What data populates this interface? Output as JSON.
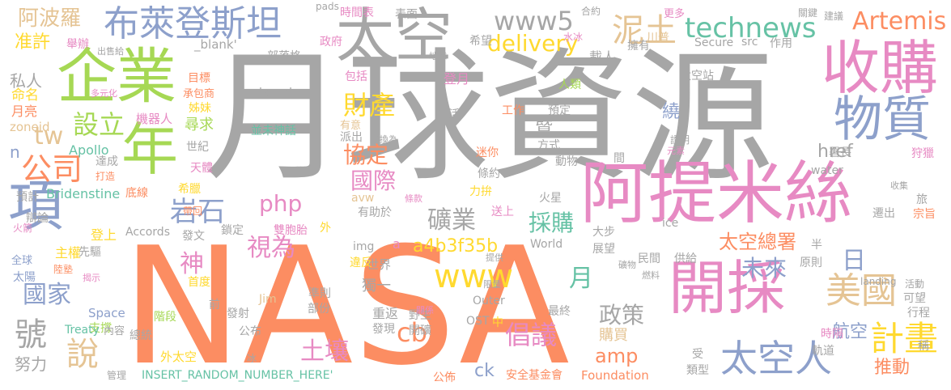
{
  "palette": {
    "gray": "#a6a6a6",
    "orange": "#fc8d62",
    "blue": "#8da0cb",
    "pink": "#e78ac3",
    "green": "#66c2a5",
    "lime": "#a6d854",
    "yellow": "#ffd92f",
    "tan": "#e5c494",
    "white": "#ffffff"
  },
  "words": [
    {
      "id": "w0",
      "text": "月球資源"
    },
    {
      "id": "w1",
      "text": "NASA"
    },
    {
      "id": "w2",
      "text": "阿提米絲"
    },
    {
      "id": "w3",
      "text": "開採"
    },
    {
      "id": "w4",
      "text": "企業"
    },
    {
      "id": "w5",
      "text": "收購"
    },
    {
      "id": "w6",
      "text": "太空"
    },
    {
      "id": "w7",
      "text": "年"
    },
    {
      "id": "w8",
      "text": "項"
    },
    {
      "id": "w9",
      "text": "布萊登斯坦"
    },
    {
      "id": "w10",
      "text": "物質"
    },
    {
      "id": "w11",
      "text": "technews"
    },
    {
      "id": "w12",
      "text": "太空人"
    },
    {
      "id": "w13",
      "text": "Artemis"
    },
    {
      "id": "w14",
      "text": "美國"
    },
    {
      "id": "w15",
      "text": "計畫"
    },
    {
      "id": "w16",
      "text": "泥土"
    },
    {
      "id": "w17",
      "text": "www5"
    },
    {
      "id": "w18",
      "text": "delivery"
    },
    {
      "id": "w19",
      "text": "公司"
    },
    {
      "id": "w20",
      "text": "財產"
    },
    {
      "id": "w21",
      "text": "設立"
    },
    {
      "id": "w22",
      "text": "岩石"
    },
    {
      "id": "w23",
      "text": "礦業"
    },
    {
      "id": "w24",
      "text": "國際"
    },
    {
      "id": "w25",
      "text": "協定"
    },
    {
      "id": "w26",
      "text": "採購"
    },
    {
      "id": "w27",
      "text": "視為"
    },
    {
      "id": "w28",
      "text": "土壤"
    },
    {
      "id": "w29",
      "text": "倡議"
    },
    {
      "id": "w30",
      "text": "政策"
    },
    {
      "id": "w31",
      "text": "說"
    },
    {
      "id": "w32",
      "text": "號"
    },
    {
      "id": "w33",
      "text": "國家"
    },
    {
      "id": "w34",
      "text": "未來"
    },
    {
      "id": "w35",
      "text": "太空總署"
    },
    {
      "id": "w36",
      "text": "www"
    },
    {
      "id": "w37",
      "text": "amp"
    },
    {
      "id": "w38",
      "text": "cb"
    },
    {
      "id": "w39",
      "text": "php"
    },
    {
      "id": "w40",
      "text": "a4b3f35b"
    },
    {
      "id": "w41",
      "text": "阿波羅"
    },
    {
      "id": "w42",
      "text": "准許"
    },
    {
      "id": "w43",
      "text": "tw"
    },
    {
      "id": "w44",
      "text": "神"
    },
    {
      "id": "w45",
      "text": "日"
    },
    {
      "id": "w46",
      "text": "月"
    },
    {
      "id": "w47",
      "text": "航空"
    },
    {
      "id": "w48",
      "text": "推動"
    },
    {
      "id": "w49",
      "text": "購買"
    },
    {
      "id": "w50",
      "text": "努力"
    },
    {
      "id": "w51",
      "text": "ck"
    },
    {
      "id": "w52",
      "text": "href"
    },
    {
      "id": "w53",
      "text": "Apollo"
    },
    {
      "id": "w54",
      "text": "Bridenstine"
    },
    {
      "id": "w55",
      "text": "私人"
    },
    {
      "id": "w56",
      "text": "命名"
    },
    {
      "id": "w57",
      "text": "月亮"
    },
    {
      "id": "w58",
      "text": "zoneid"
    },
    {
      "id": "w59",
      "text": "n"
    },
    {
      "id": "w60",
      "text": "並未神話"
    },
    {
      "id": "w61",
      "text": "target"
    },
    {
      "id": "w62",
      "text": "_blank'"
    },
    {
      "id": "w63",
      "text": "部落格"
    },
    {
      "id": "w64",
      "text": "目標"
    },
    {
      "id": "w65",
      "text": "姊妹"
    },
    {
      "id": "w66",
      "text": "機器人"
    },
    {
      "id": "w67",
      "text": "尋求"
    },
    {
      "id": "w68",
      "text": "世紀"
    },
    {
      "id": "w69",
      "text": "天體"
    },
    {
      "id": "w70",
      "text": "希臘"
    },
    {
      "id": "w71",
      "text": "底線"
    },
    {
      "id": "w72",
      "text": "達成"
    },
    {
      "id": "w73",
      "text": "預計"
    },
    {
      "id": "w74",
      "text": "辯論"
    },
    {
      "id": "w75",
      "text": "登上"
    },
    {
      "id": "w76",
      "text": "主權"
    },
    {
      "id": "w77",
      "text": "先驅"
    },
    {
      "id": "w78",
      "text": "太陽"
    },
    {
      "id": "w79",
      "text": "全球"
    },
    {
      "id": "w80",
      "text": "Accords"
    },
    {
      "id": "w81",
      "text": "首度"
    },
    {
      "id": "w82",
      "text": "階段"
    },
    {
      "id": "w83",
      "text": "總統"
    },
    {
      "id": "w84",
      "text": "外太空"
    },
    {
      "id": "w85",
      "text": "公布"
    },
    {
      "id": "w86",
      "text": "發射"
    },
    {
      "id": "w87",
      "text": "部份"
    },
    {
      "id": "w88",
      "text": "重返"
    },
    {
      "id": "w89",
      "text": "獨一"
    },
    {
      "id": "w90",
      "text": "Space"
    },
    {
      "id": "w91",
      "text": "支撐"
    },
    {
      "id": "w92",
      "text": "Treaty"
    },
    {
      "id": "w93",
      "text": "內容"
    },
    {
      "id": "w94",
      "text": "INSERT_RANDOM_NUMBER_HERE'"
    },
    {
      "id": "w95",
      "text": "安全基金會"
    },
    {
      "id": "w96",
      "text": "Foundation"
    },
    {
      "id": "w97",
      "text": "世界"
    },
    {
      "id": "w98",
      "text": "準則"
    },
    {
      "id": "w99",
      "text": "違反"
    },
    {
      "id": "w100",
      "text": "World"
    },
    {
      "id": "w101",
      "text": "OST"
    },
    {
      "id": "w102",
      "text": "Outer"
    },
    {
      "id": "w103",
      "text": "最終"
    },
    {
      "id": "w104",
      "text": "開礦"
    },
    {
      "id": "w105",
      "text": "野生"
    },
    {
      "id": "w106",
      "text": "時間表"
    },
    {
      "id": "w107",
      "text": "表面"
    },
    {
      "id": "w108",
      "text": "政府"
    },
    {
      "id": "w109",
      "text": "希望"
    },
    {
      "id": "w110",
      "text": "載人"
    },
    {
      "id": "w111",
      "text": "擁有"
    },
    {
      "id": "w112",
      "text": "川普"
    },
    {
      "id": "w113",
      "text": "Secure"
    },
    {
      "id": "w114",
      "text": "src"
    },
    {
      "id": "w115",
      "text": "作用"
    },
    {
      "id": "w116",
      "text": "太空站"
    },
    {
      "id": "w117",
      "text": "人類"
    },
    {
      "id": "w118",
      "text": "登月"
    },
    {
      "id": "w119",
      "text": "包括"
    },
    {
      "id": "w120",
      "text": "生活"
    },
    {
      "id": "w121",
      "text": "工作"
    },
    {
      "id": "w122",
      "text": "預定"
    },
    {
      "id": "w123",
      "text": "暨"
    },
    {
      "id": "w124",
      "text": "繞"
    },
    {
      "id": "w125",
      "text": "方式"
    },
    {
      "id": "w126",
      "text": "迷你"
    },
    {
      "id": "w127",
      "text": "動物"
    },
    {
      "id": "w128",
      "text": "條約"
    },
    {
      "id": "w129",
      "text": "力拚"
    },
    {
      "id": "w130",
      "text": "火星"
    },
    {
      "id": "w131",
      "text": "送上"
    },
    {
      "id": "w132",
      "text": "有助於"
    },
    {
      "id": "w133",
      "text": "avw"
    },
    {
      "id": "w134",
      "text": "img"
    },
    {
      "id": "w135",
      "text": "a"
    },
    {
      "id": "w136",
      "text": "發文"
    },
    {
      "id": "w137",
      "text": "外"
    },
    {
      "id": "w138",
      "text": "鎖定"
    },
    {
      "id": "w139",
      "text": "雙胞胎"
    },
    {
      "id": "w140",
      "text": "Jim"
    },
    {
      "id": "w141",
      "text": "前"
    },
    {
      "id": "w142",
      "text": "發現"
    },
    {
      "id": "w143",
      "text": "中"
    },
    {
      "id": "w144",
      "text": "公佈"
    },
    {
      "id": "w145",
      "text": "大步"
    },
    {
      "id": "w146",
      "text": "展望"
    },
    {
      "id": "w147",
      "text": "供給"
    },
    {
      "id": "w148",
      "text": "民間"
    },
    {
      "id": "w149",
      "text": "原則"
    },
    {
      "id": "w150",
      "text": "半"
    },
    {
      "id": "w151",
      "text": "時隔"
    },
    {
      "id": "w152",
      "text": "軌道"
    },
    {
      "id": "w153",
      "text": "類型"
    },
    {
      "id": "w154",
      "text": "受"
    },
    {
      "id": "w155",
      "text": "可望"
    },
    {
      "id": "w156",
      "text": "行程"
    },
    {
      "id": "w157",
      "text": "署長"
    },
    {
      "id": "w158",
      "text": "狩獵"
    },
    {
      "id": "w159",
      "text": "water"
    },
    {
      "id": "w160",
      "text": "ice"
    },
    {
      "id": "w161",
      "text": "旅"
    },
    {
      "id": "w162",
      "text": "遷出"
    },
    {
      "id": "w163",
      "text": "宗旨"
    },
    {
      "id": "w164",
      "text": "landing"
    },
    {
      "id": "w165",
      "text": "活動"
    },
    {
      "id": "w166",
      "text": "稱"
    },
    {
      "id": "w167",
      "text": "證明"
    },
    {
      "id": "w168",
      "text": "間"
    },
    {
      "id": "w169",
      "text": "更多"
    },
    {
      "id": "w170",
      "text": "合約"
    },
    {
      "id": "w171",
      "text": "pads"
    },
    {
      "id": "w172",
      "text": "關鍵"
    },
    {
      "id": "w173",
      "text": "建議"
    },
    {
      "id": "w174",
      "text": "舉辦"
    },
    {
      "id": "w175",
      "text": "出售給"
    },
    {
      "id": "w176",
      "text": "承包商"
    },
    {
      "id": "w177",
      "text": "多元化"
    },
    {
      "id": "w178",
      "text": "派出"
    },
    {
      "id": "w179",
      "text": "轉換為"
    },
    {
      "id": "w180",
      "text": "有意"
    },
    {
      "id": "w181",
      "text": "元素"
    },
    {
      "id": "w182",
      "text": "打造"
    },
    {
      "id": "w183",
      "text": "帶回"
    },
    {
      "id": "w184",
      "text": "火箭"
    },
    {
      "id": "w185",
      "text": "陸塾"
    },
    {
      "id": "w186",
      "text": "揭示"
    },
    {
      "id": "w187",
      "text": "管理"
    },
    {
      "id": "w188",
      "text": "冰"
    },
    {
      "id": "w189",
      "text": "關係"
    },
    {
      "id": "w190",
      "text": "限量"
    },
    {
      "id": "w191",
      "text": "提供"
    },
    {
      "id": "w192",
      "text": "礦物"
    },
    {
      "id": "w193",
      "text": "燃料"
    },
    {
      "id": "w194",
      "text": "收集"
    },
    {
      "id": "w195",
      "text": "條款"
    },
    {
      "id": "w196",
      "text": "水冰"
    },
    {
      "id": "w197",
      "text": "地球"
    }
  ]
}
